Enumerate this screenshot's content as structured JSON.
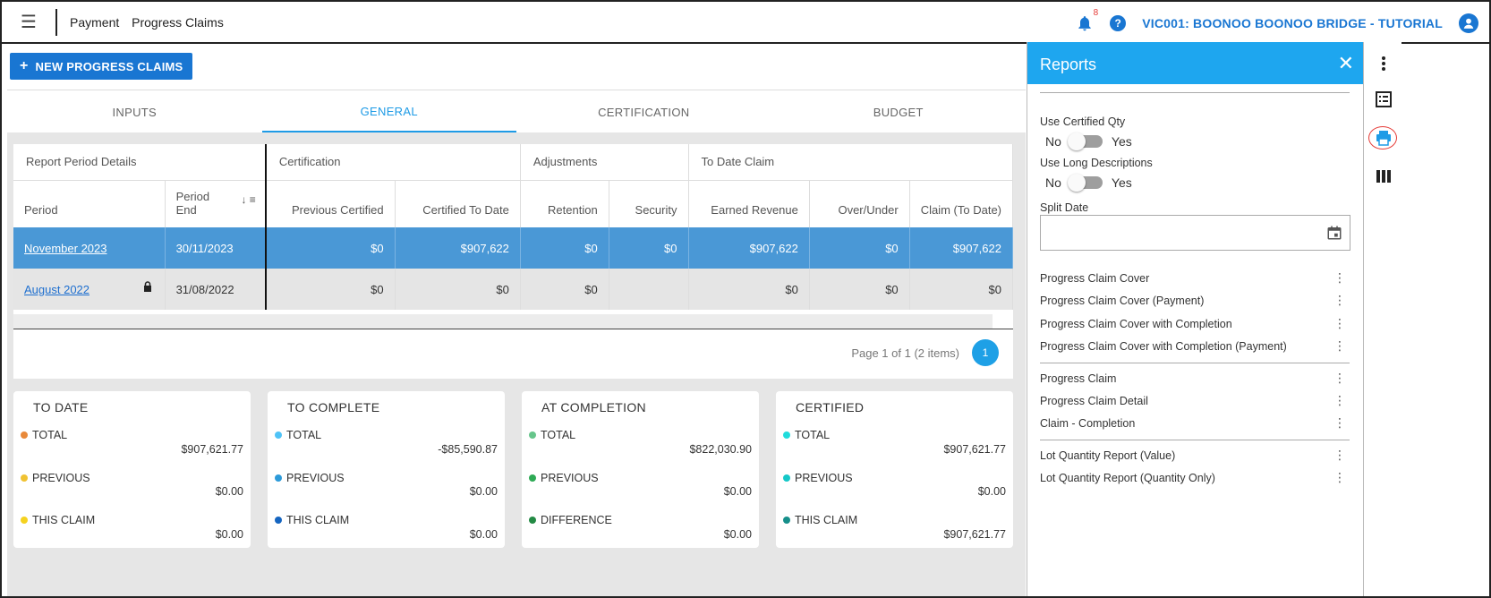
{
  "topbar": {
    "breadcrumb_1": "Payment",
    "breadcrumb_2": "Progress Claims",
    "notification_count": "8",
    "help_label": "?",
    "project": "VIC001: BOONOO BOONOO BRIDGE - TUTORIAL"
  },
  "toolbar": {
    "new_button": "NEW PROGRESS CLAIMS"
  },
  "tabs": [
    "INPUTS",
    "GENERAL",
    "CERTIFICATION",
    "BUDGET"
  ],
  "active_tab": "GENERAL",
  "grid": {
    "groups": [
      "Report Period Details",
      "Certification",
      "Adjustments",
      "To Date Claim"
    ],
    "columns": [
      "Period",
      "Period End",
      "Previous Certified",
      "Certified To Date",
      "Retention",
      "Security",
      "Earned Revenue",
      "Over/Under",
      "Claim (To Date)"
    ],
    "rows": [
      {
        "period": "November 2023",
        "end": "30/11/2023",
        "prev": "$0",
        "cert": "$907,622",
        "ret": "$0",
        "sec": "$0",
        "earned": "$907,622",
        "over": "$0",
        "claim": "$907,622",
        "locked": false
      },
      {
        "period": "August 2022",
        "end": "31/08/2022",
        "prev": "$0",
        "cert": "$0",
        "ret": "$0",
        "sec": "",
        "earned": "$0",
        "over": "$0",
        "claim": "$0",
        "locked": true
      }
    ],
    "pager_text": "Page 1 of 1 (2 items)",
    "page": "1"
  },
  "cards": [
    {
      "title": "TO DATE",
      "items": [
        {
          "label": "TOTAL",
          "value": "$907,621.77",
          "color": "#e8893a"
        },
        {
          "label": "PREVIOUS",
          "value": "$0.00",
          "color": "#f0c232"
        },
        {
          "label": "THIS CLAIM",
          "value": "$0.00",
          "color": "#f5d21f"
        }
      ]
    },
    {
      "title": "TO COMPLETE",
      "items": [
        {
          "label": "TOTAL",
          "value": "-$85,590.87",
          "color": "#4fc3f7"
        },
        {
          "label": "PREVIOUS",
          "value": "$0.00",
          "color": "#2c9ad9"
        },
        {
          "label": "THIS CLAIM",
          "value": "$0.00",
          "color": "#1565c0"
        }
      ]
    },
    {
      "title": "AT COMPLETION",
      "items": [
        {
          "label": "TOTAL",
          "value": "$822,030.90",
          "color": "#66c58b"
        },
        {
          "label": "PREVIOUS",
          "value": "$0.00",
          "color": "#2eaa55"
        },
        {
          "label": "DIFFERENCE",
          "value": "$0.00",
          "color": "#238a44"
        }
      ]
    },
    {
      "title": "CERTIFIED",
      "items": [
        {
          "label": "TOTAL",
          "value": "$907,621.77",
          "color": "#20dcdc"
        },
        {
          "label": "PREVIOUS",
          "value": "$0.00",
          "color": "#15c8c8"
        },
        {
          "label": "THIS CLAIM",
          "value": "$907,621.77",
          "color": "#168f8a"
        }
      ]
    }
  ],
  "reports": {
    "title": "Reports",
    "close": "✕",
    "use_certified_qty": "Use Certified Qty",
    "use_long_descriptions": "Use Long Descriptions",
    "no": "No",
    "yes": "Yes",
    "split_date": "Split Date",
    "split_date_value": "",
    "list_a": [
      "Progress Claim Cover",
      "Progress Claim Cover (Payment)",
      "Progress Claim Cover with Completion",
      "Progress Claim Cover with Completion (Payment)"
    ],
    "list_b": [
      "Progress Claim",
      "Progress Claim Detail",
      "Claim - Completion"
    ],
    "list_c": [
      "Lot Quantity Report (Value)",
      "Lot Quantity Report (Quantity Only)"
    ]
  },
  "colors": {
    "primary": "#1976d2",
    "panel_header": "#1ea6ef",
    "selected_row": "#4a98d6"
  }
}
